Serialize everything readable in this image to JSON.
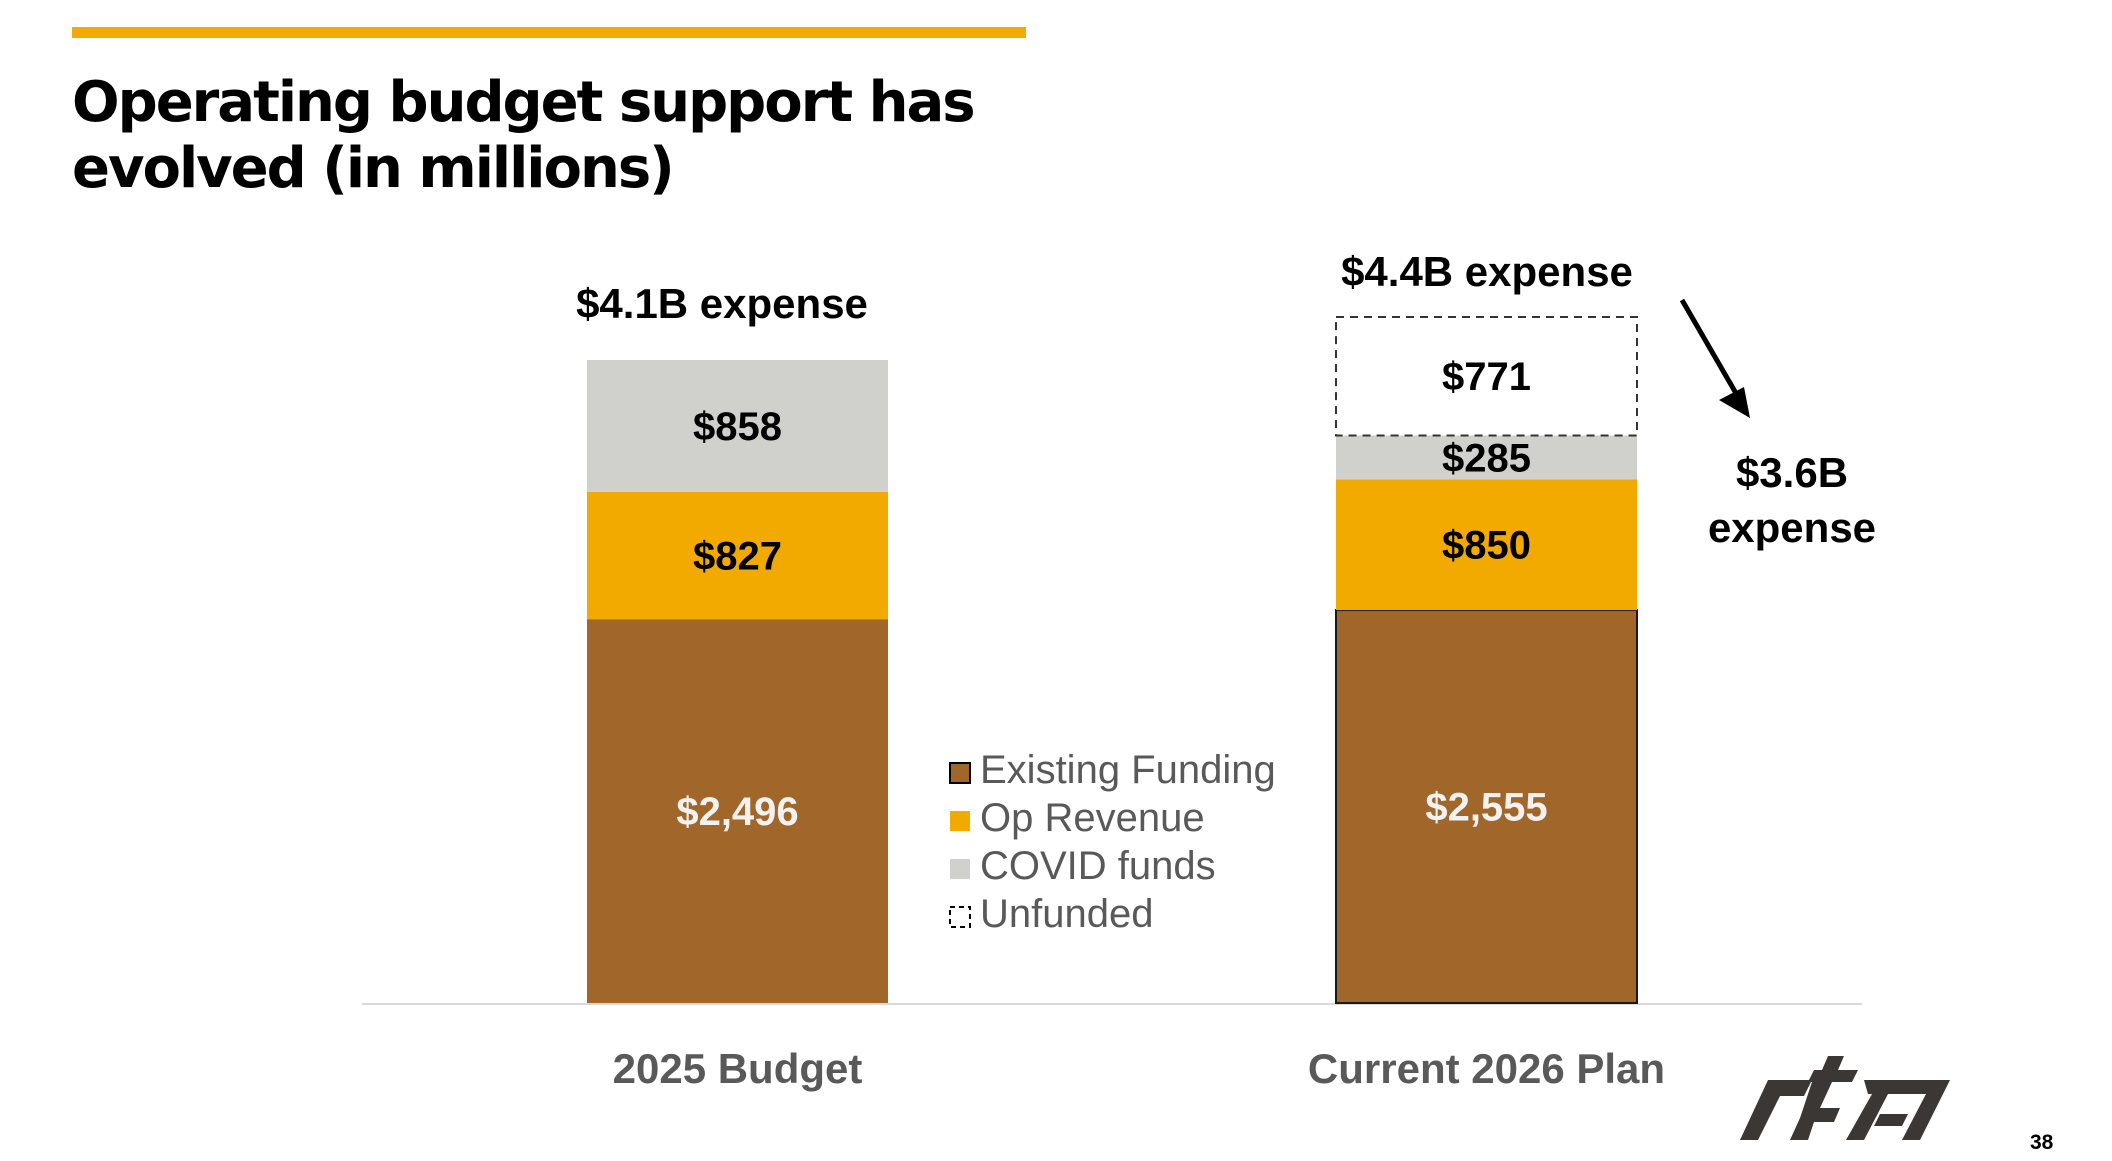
{
  "slide": {
    "title": "Operating budget support has evolved (in millions)",
    "page_number": "38",
    "logo": "rta-logo",
    "accent_color": "#f2a900"
  },
  "annotations": {
    "bar1_total": "$4.1B expense",
    "bar2_total": "$4.4B expense",
    "bar2_funded_total": "$3.6B expense",
    "bar2_funded_total_line1": "$3.6B",
    "bar2_funded_total_line2": "expense",
    "arrow": "arrow-down-right"
  },
  "chart_data": {
    "type": "bar",
    "stacked": true,
    "title": "Operating budget support has evolved (in millions)",
    "xlabel": "",
    "ylabel": "",
    "units": "USD millions",
    "categories": [
      "2025 Budget",
      "Current 2026 Plan"
    ],
    "series": [
      {
        "name": "Existing Funding",
        "color": "#a0662a",
        "label_color": "#f2f2f2",
        "style": "solid",
        "values": [
          2496,
          2555
        ],
        "labels": [
          "$2,496",
          "$2,555"
        ]
      },
      {
        "name": "Op Revenue",
        "color": "#f2a900",
        "label_color": "#000000",
        "style": "solid",
        "values": [
          827,
          850
        ],
        "labels": [
          "$827",
          "$850"
        ]
      },
      {
        "name": "COVID funds",
        "color": "#d0d0cc",
        "label_color": "#000000",
        "style": "solid",
        "values": [
          858,
          285
        ],
        "labels": [
          "$858",
          "$285"
        ]
      },
      {
        "name": "Unfunded",
        "color": "#ffffff",
        "label_color": "#000000",
        "style": "dashed",
        "values": [
          0,
          771
        ],
        "labels": [
          "",
          "$771"
        ]
      }
    ],
    "totals": [
      "$4.1B expense",
      "$4.4B expense"
    ],
    "ylim": [
      0,
      4600
    ],
    "grid": false,
    "legend": {
      "position": "center",
      "entries": [
        "Existing Funding",
        "Op Revenue",
        "COVID funds",
        "Unfunded"
      ]
    }
  }
}
